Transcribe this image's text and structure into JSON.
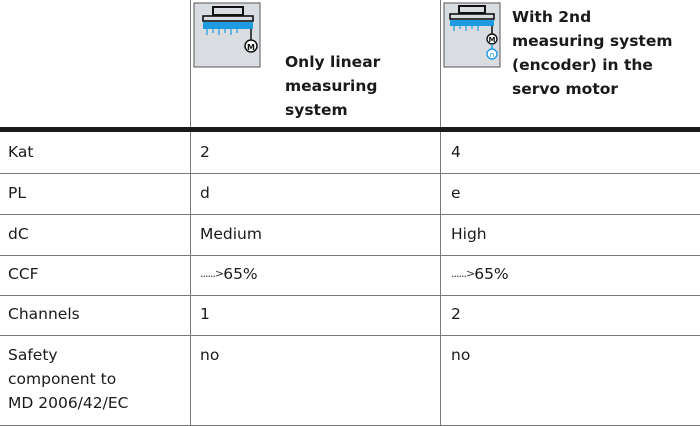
{
  "header": {
    "col1_label": [
      "Only linear",
      "measuring",
      "system"
    ],
    "col2_label": [
      "With 2nd",
      "measuring system",
      "(encoder) in the",
      "servo motor"
    ],
    "col1_icon_motor_letter": "M",
    "col2_icon_motor_letter": "M",
    "col2_icon_encoder_letter": "n"
  },
  "rows": [
    {
      "label": [
        "Kat"
      ],
      "col1": "2",
      "col2": "4"
    },
    {
      "label": [
        "PL"
      ],
      "col1": "d",
      "col2": "e"
    },
    {
      "label": [
        "dC"
      ],
      "col1": "Medium",
      "col2": "High"
    },
    {
      "label": [
        "CCF"
      ],
      "col1": "65%",
      "col2": "65%",
      "arrow": "......>"
    },
    {
      "label": [
        "Channels"
      ],
      "col1": "1",
      "col2": "2"
    },
    {
      "label": [
        "Safety",
        "component to",
        "MD 2006/42/EC"
      ],
      "col1": "no",
      "col2": "no"
    }
  ],
  "colors": {
    "icon_bg": "#d9dde2",
    "icon_blue": "#1e9be0",
    "rule": "#7a7a7a"
  }
}
